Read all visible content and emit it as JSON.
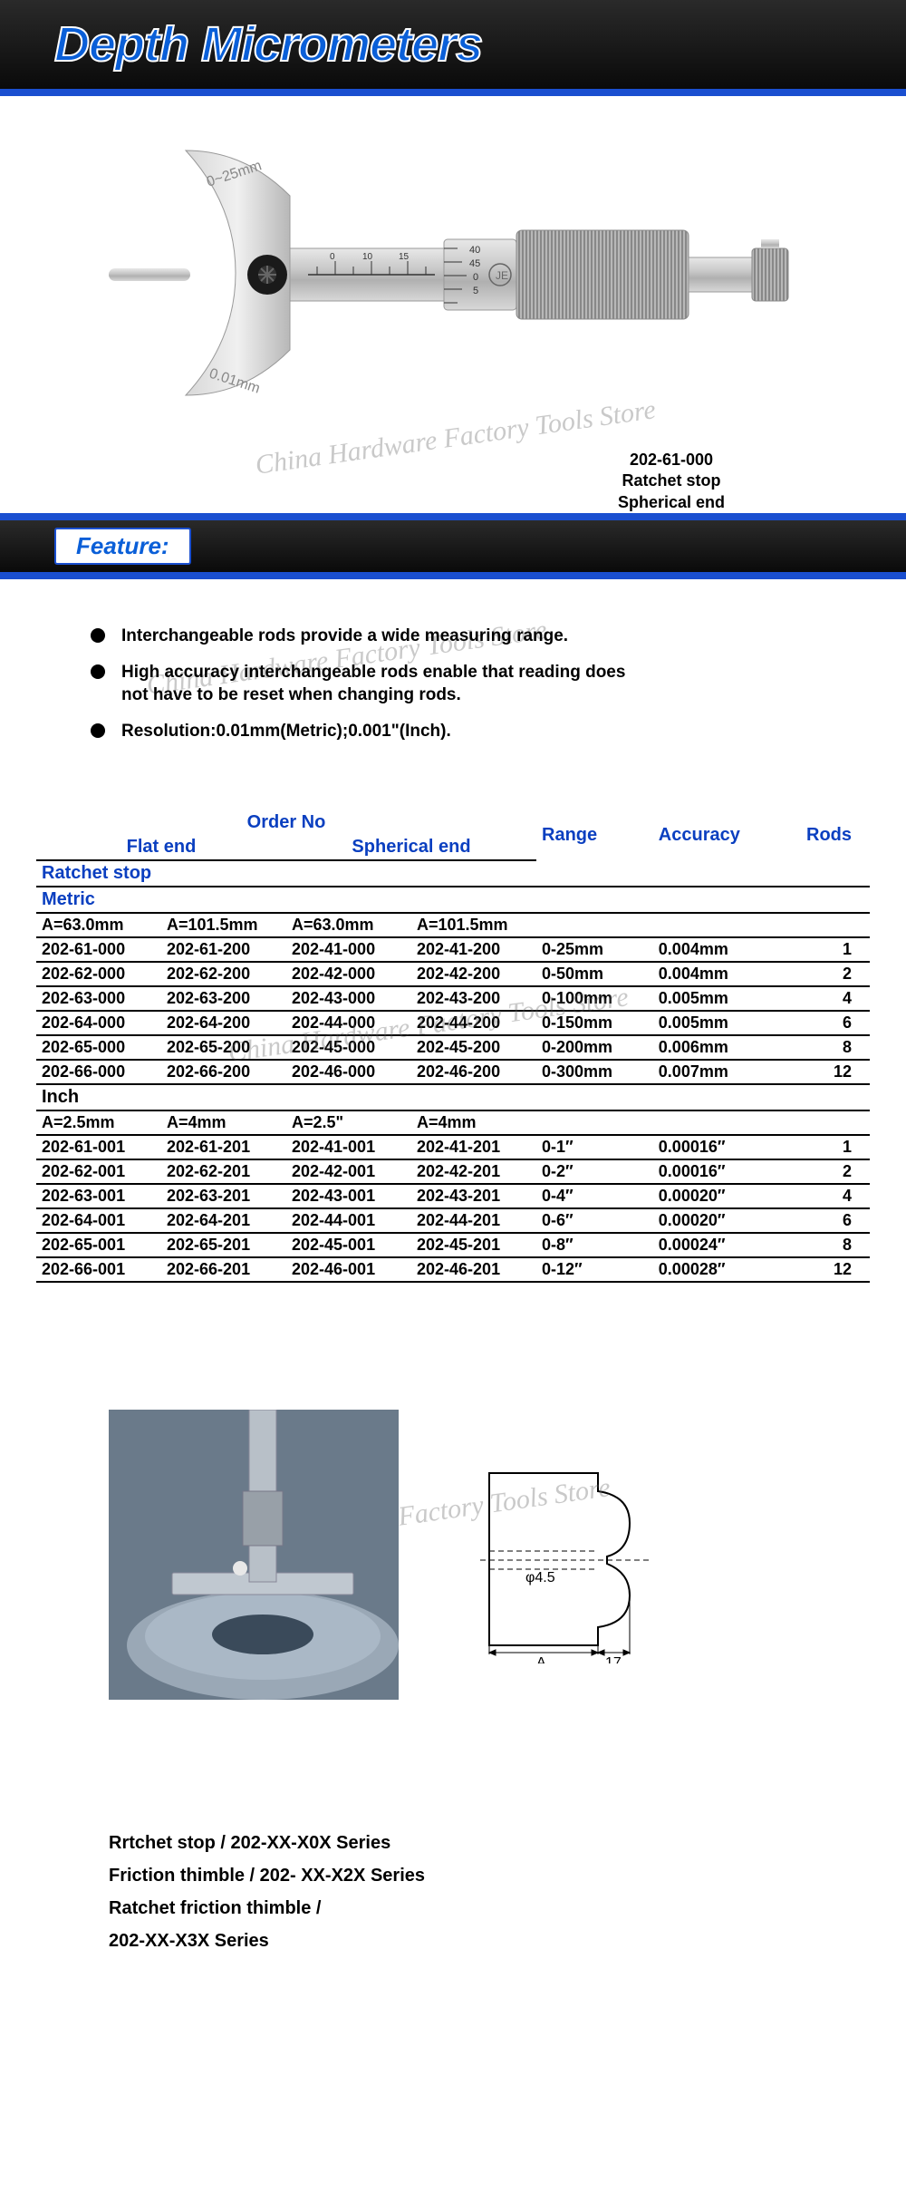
{
  "header": {
    "title": "Depth Micrometers"
  },
  "product": {
    "caption_line1": "202-61-000",
    "caption_line2": "Ratchet stop",
    "caption_line3": "Spherical end"
  },
  "colors": {
    "accent_blue": "#0a5fd8",
    "rule_blue": "#1a4fd0",
    "header_blue": "#0a3fc0",
    "band_dark": "#0a0a0a"
  },
  "section_feature_label": "Feature:",
  "features": [
    "Interchangeable rods provide a wide measuring range.",
    "High accuracy interchangeable rods enable that reading does not have to be reset when changing rods.",
    "Resolution:0.01mm(Metric);0.001\"(Inch)."
  ],
  "watermark_text": "China Hardware Factory Tools Store",
  "table": {
    "header_top": {
      "order_no": "Order No",
      "range": "Range",
      "accuracy": "Accuracy",
      "rods": "Rods"
    },
    "header_sub": {
      "flat": "Flat end",
      "spherical": "Spherical end"
    },
    "group1": "Ratchet stop",
    "metric_label": "Metric",
    "metric_dims": [
      "A=63.0mm",
      "A=101.5mm",
      "A=63.0mm",
      "A=101.5mm"
    ],
    "metric_rows": [
      {
        "c": [
          "202-61-000",
          "202-61-200",
          "202-41-000",
          "202-41-200"
        ],
        "range": "0-25mm",
        "acc": "0.004mm",
        "rods": "1"
      },
      {
        "c": [
          "202-62-000",
          "202-62-200",
          "202-42-000",
          "202-42-200"
        ],
        "range": "0-50mm",
        "acc": "0.004mm",
        "rods": "2"
      },
      {
        "c": [
          "202-63-000",
          "202-63-200",
          "202-43-000",
          "202-43-200"
        ],
        "range": "0-100mm",
        "acc": "0.005mm",
        "rods": "4"
      },
      {
        "c": [
          "202-64-000",
          "202-64-200",
          "202-44-000",
          "202-44-200"
        ],
        "range": "0-150mm",
        "acc": "0.005mm",
        "rods": "6"
      },
      {
        "c": [
          "202-65-000",
          "202-65-200",
          "202-45-000",
          "202-45-200"
        ],
        "range": "0-200mm",
        "acc": "0.006mm",
        "rods": "8"
      },
      {
        "c": [
          "202-66-000",
          "202-66-200",
          "202-46-000",
          "202-46-200"
        ],
        "range": "0-300mm",
        "acc": "0.007mm",
        "rods": "12"
      }
    ],
    "inch_label": "Inch",
    "inch_dims": [
      "A=2.5mm",
      "A=4mm",
      "A=2.5\"",
      "A=4mm"
    ],
    "inch_rows": [
      {
        "c": [
          "202-61-001",
          "202-61-201",
          "202-41-001",
          "202-41-201"
        ],
        "range": "0-1″",
        "acc": "0.00016″",
        "rods": "1"
      },
      {
        "c": [
          "202-62-001",
          "202-62-201",
          "202-42-001",
          "202-42-201"
        ],
        "range": "0-2″",
        "acc": "0.00016″",
        "rods": "2"
      },
      {
        "c": [
          "202-63-001",
          "202-63-201",
          "202-43-001",
          "202-43-201"
        ],
        "range": "0-4″",
        "acc": "0.00020″",
        "rods": "4"
      },
      {
        "c": [
          "202-64-001",
          "202-64-201",
          "202-44-001",
          "202-44-201"
        ],
        "range": "0-6″",
        "acc": "0.00020″",
        "rods": "6"
      },
      {
        "c": [
          "202-65-001",
          "202-65-201",
          "202-45-001",
          "202-45-201"
        ],
        "range": "0-8″",
        "acc": "0.00024″",
        "rods": "8"
      },
      {
        "c": [
          "202-66-001",
          "202-66-201",
          "202-46-001",
          "202-46-201"
        ],
        "range": "0-12″",
        "acc": "0.00028″",
        "rods": "12"
      }
    ]
  },
  "diagram": {
    "phi_label": "φ4.5",
    "a_label": "A",
    "w_label": "17"
  },
  "series": [
    "Rrtchet stop / 202-XX-X0X Series",
    "Friction thimble / 202- XX-X2X Series",
    "Ratchet friction thimble /",
    "202-XX-X3X Series"
  ]
}
